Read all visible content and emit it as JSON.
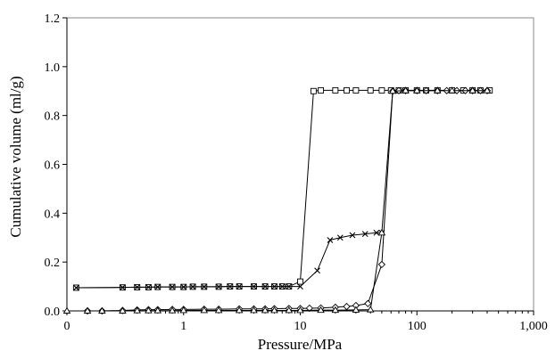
{
  "chart_data": {
    "type": "scatter",
    "xlabel": "Pressure/MPa",
    "ylabel": "Cumulative volume (ml/g)",
    "xscale": "log",
    "xlim": [
      0.1,
      1000
    ],
    "ylim": [
      0,
      1.2
    ],
    "x_ticks": [
      {
        "value": 0.1,
        "label": "0"
      },
      {
        "value": 1,
        "label": "1"
      },
      {
        "value": 10,
        "label": "10"
      },
      {
        "value": 100,
        "label": "100"
      },
      {
        "value": 1000,
        "label": "1,000"
      }
    ],
    "y_ticks": [
      {
        "value": 0.0,
        "label": "0.0"
      },
      {
        "value": 0.2,
        "label": "0.2"
      },
      {
        "value": 0.4,
        "label": "0.4"
      },
      {
        "value": 0.6,
        "label": "0.6"
      },
      {
        "value": 0.8,
        "label": "0.8"
      },
      {
        "value": 1.0,
        "label": "1.0"
      },
      {
        "value": 1.2,
        "label": "1.2"
      }
    ],
    "grid": false,
    "legend": "none",
    "line_color": "#000000",
    "series": [
      {
        "marker": "square",
        "points": [
          [
            0.12,
            0.095
          ],
          [
            0.3,
            0.096
          ],
          [
            0.4,
            0.097
          ],
          [
            0.5,
            0.097
          ],
          [
            0.6,
            0.098
          ],
          [
            0.8,
            0.098
          ],
          [
            1.0,
            0.098
          ],
          [
            1.2,
            0.099
          ],
          [
            1.5,
            0.099
          ],
          [
            2.0,
            0.099
          ],
          [
            2.5,
            0.1
          ],
          [
            3.0,
            0.1
          ],
          [
            4.0,
            0.1
          ],
          [
            5.0,
            0.1
          ],
          [
            6.0,
            0.1
          ],
          [
            7.0,
            0.1
          ],
          [
            8.0,
            0.1
          ],
          [
            10.0,
            0.12
          ],
          [
            13.0,
            0.9
          ],
          [
            15.0,
            0.903
          ],
          [
            20.0,
            0.903
          ],
          [
            25.0,
            0.903
          ],
          [
            30.0,
            0.903
          ],
          [
            40.0,
            0.903
          ],
          [
            50.0,
            0.903
          ],
          [
            60.0,
            0.903
          ],
          [
            70.0,
            0.903
          ],
          [
            80.0,
            0.903
          ],
          [
            100.0,
            0.903
          ],
          [
            120.0,
            0.903
          ],
          [
            150.0,
            0.903
          ],
          [
            200.0,
            0.903
          ],
          [
            250.0,
            0.903
          ],
          [
            300.0,
            0.903
          ],
          [
            350.0,
            0.903
          ],
          [
            420.0,
            0.903
          ]
        ]
      },
      {
        "marker": "cross",
        "points": [
          [
            0.12,
            0.095
          ],
          [
            0.3,
            0.096
          ],
          [
            0.4,
            0.097
          ],
          [
            0.5,
            0.097
          ],
          [
            0.6,
            0.098
          ],
          [
            0.8,
            0.098
          ],
          [
            1.0,
            0.098
          ],
          [
            1.2,
            0.099
          ],
          [
            1.5,
            0.099
          ],
          [
            2.0,
            0.099
          ],
          [
            2.5,
            0.1
          ],
          [
            3.0,
            0.1
          ],
          [
            4.0,
            0.1
          ],
          [
            5.0,
            0.1
          ],
          [
            6.0,
            0.1
          ],
          [
            7.0,
            0.1
          ],
          [
            8.0,
            0.1
          ],
          [
            10.0,
            0.1
          ],
          [
            14.0,
            0.165
          ],
          [
            18.0,
            0.29
          ],
          [
            22.0,
            0.3
          ],
          [
            28.0,
            0.31
          ],
          [
            36.0,
            0.315
          ],
          [
            45.0,
            0.32
          ],
          [
            50.0,
            0.32
          ]
        ]
      },
      {
        "marker": "diamond",
        "points": [
          [
            0.15,
            0.0
          ],
          [
            0.2,
            0.0
          ],
          [
            0.3,
            0.002
          ],
          [
            0.4,
            0.004
          ],
          [
            0.5,
            0.005
          ],
          [
            0.6,
            0.005
          ],
          [
            0.8,
            0.006
          ],
          [
            1.0,
            0.006
          ],
          [
            1.5,
            0.007
          ],
          [
            2.0,
            0.007
          ],
          [
            3.0,
            0.008
          ],
          [
            4.0,
            0.008
          ],
          [
            5.0,
            0.008
          ],
          [
            6.0,
            0.009
          ],
          [
            8.0,
            0.01
          ],
          [
            10.0,
            0.01
          ],
          [
            12.0,
            0.011
          ],
          [
            15.0,
            0.012
          ],
          [
            20.0,
            0.015
          ],
          [
            25.0,
            0.018
          ],
          [
            30.0,
            0.022
          ],
          [
            38.0,
            0.03
          ],
          [
            50.0,
            0.19
          ],
          [
            62.0,
            0.9
          ],
          [
            70.0,
            0.902
          ],
          [
            80.0,
            0.902
          ],
          [
            100.0,
            0.902
          ],
          [
            120.0,
            0.902
          ],
          [
            150.0,
            0.902
          ],
          [
            180.0,
            0.902
          ],
          [
            220.0,
            0.902
          ],
          [
            260.0,
            0.902
          ],
          [
            300.0,
            0.902
          ],
          [
            350.0,
            0.902
          ],
          [
            400.0,
            0.902
          ]
        ]
      },
      {
        "marker": "triangle",
        "points": [
          [
            0.1,
            0.0
          ],
          [
            0.15,
            0.0
          ],
          [
            0.2,
            0.0
          ],
          [
            0.3,
            0.0
          ],
          [
            0.4,
            0.001
          ],
          [
            0.5,
            0.001
          ],
          [
            0.6,
            0.001
          ],
          [
            0.8,
            0.001
          ],
          [
            1.0,
            0.002
          ],
          [
            1.5,
            0.002
          ],
          [
            2.0,
            0.002
          ],
          [
            3.0,
            0.002
          ],
          [
            4.0,
            0.002
          ],
          [
            5.0,
            0.002
          ],
          [
            6.0,
            0.002
          ],
          [
            8.0,
            0.002
          ],
          [
            10.0,
            0.002
          ],
          [
            15.0,
            0.003
          ],
          [
            20.0,
            0.003
          ],
          [
            30.0,
            0.004
          ],
          [
            40.0,
            0.005
          ],
          [
            50.0,
            0.32
          ],
          [
            62.0,
            0.9
          ],
          [
            80.0,
            0.902
          ],
          [
            100.0,
            0.902
          ],
          [
            150.0,
            0.902
          ],
          [
            200.0,
            0.902
          ],
          [
            300.0,
            0.902
          ],
          [
            400.0,
            0.902
          ]
        ]
      }
    ]
  }
}
